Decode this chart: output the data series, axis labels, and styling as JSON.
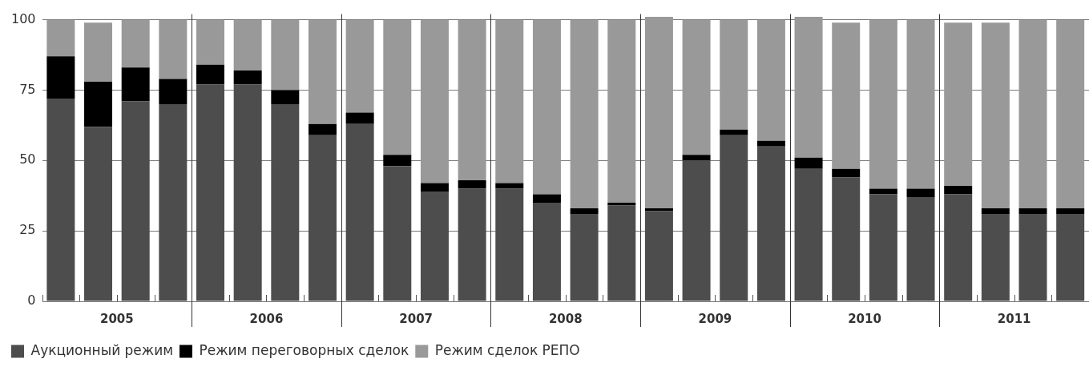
{
  "chart_data": {
    "type": "bar",
    "stacked": true,
    "x": [
      2005.125,
      2005.375,
      2005.625,
      2005.875,
      2006.125,
      2006.375,
      2006.625,
      2006.875,
      2007.125,
      2007.375,
      2007.625,
      2007.875,
      2008.125,
      2008.375,
      2008.625,
      2008.875,
      2009.125,
      2009.375,
      2009.625,
      2009.875,
      2010.125,
      2010.375,
      2010.625,
      2010.875,
      2011.125,
      2011.375,
      2011.625,
      2011.875
    ],
    "series": [
      {
        "name": "Аукционный режим",
        "color": "#4d4d4d",
        "values": [
          72,
          62,
          71,
          70,
          77,
          77,
          70,
          59,
          63,
          48,
          39,
          40,
          40,
          35,
          31,
          34,
          32,
          50,
          59,
          55,
          47,
          44,
          38,
          37,
          38,
          31,
          31,
          31
        ]
      },
      {
        "name": "Режим переговорных сделок",
        "color": "#000000",
        "values": [
          15,
          16,
          12,
          9,
          7,
          5,
          5,
          4,
          4,
          4,
          3,
          3,
          2,
          3,
          2,
          1,
          1,
          2,
          2,
          2,
          4,
          3,
          2,
          3,
          3,
          2,
          2,
          2
        ]
      },
      {
        "name": "Режим сделок РЕПО",
        "color": "#999999",
        "values": [
          13,
          21,
          17,
          21,
          16,
          18,
          25,
          37,
          33,
          48,
          58,
          57,
          58,
          62,
          67,
          65,
          68,
          48,
          39,
          43,
          50,
          52,
          60,
          60,
          58,
          66,
          67,
          67
        ]
      }
    ],
    "xlim": [
      2005,
      2012
    ],
    "xticks": [
      {
        "value": 2005.5,
        "label": "2005"
      },
      {
        "value": 2006,
        "label": null
      },
      {
        "value": 2006.5,
        "label": "2006"
      },
      {
        "value": 2007,
        "label": null
      },
      {
        "value": 2007.5,
        "label": "2007"
      },
      {
        "value": 2008,
        "label": null
      },
      {
        "value": 2008.5,
        "label": "2008"
      },
      {
        "value": 2009,
        "label": null
      },
      {
        "value": 2009.5,
        "label": "2009"
      },
      {
        "value": 2010,
        "label": null
      },
      {
        "value": 2010.5,
        "label": "2010"
      },
      {
        "value": 2011,
        "label": null
      },
      {
        "value": 2011.5,
        "label": "2011"
      }
    ],
    "ylim": [
      0,
      102
    ],
    "yticks": [
      0,
      25,
      50,
      75,
      100
    ],
    "grid": true,
    "legend": "bottom left"
  }
}
